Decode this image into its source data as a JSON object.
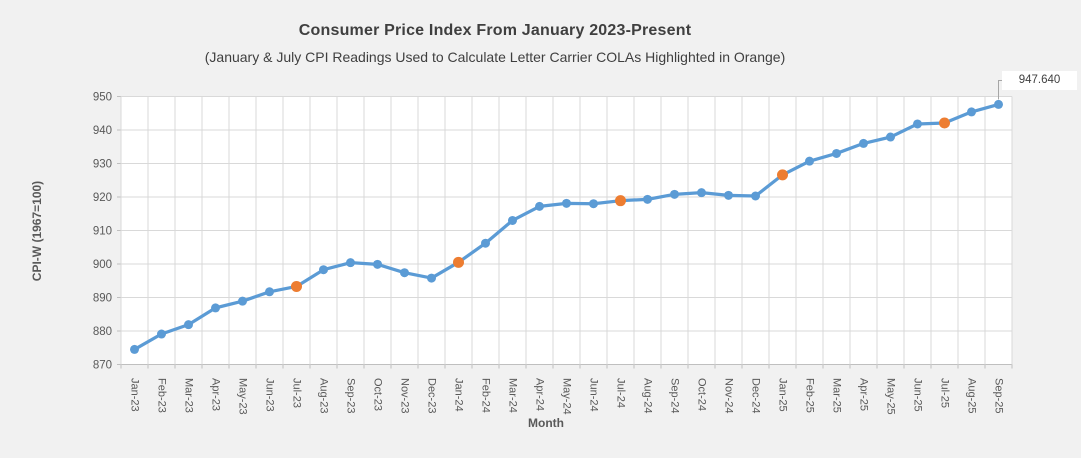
{
  "chart_data": {
    "type": "line",
    "title": "Consumer Price Index From January 2023-Present",
    "subtitle": "(January & July CPI Readings Used to Calculate Letter Carrier COLAs Highlighted in Orange)",
    "xlabel": "Month",
    "ylabel": "CPI-W (1967=100)",
    "ylim": [
      870,
      950
    ],
    "ytick_step": 10,
    "grid": true,
    "legend": false,
    "categories": [
      "Jan-23",
      "Feb-23",
      "Mar-23",
      "Apr-23",
      "May-23",
      "Jun-23",
      "Jul-23",
      "Aug-23",
      "Sep-23",
      "Oct-23",
      "Nov-23",
      "Dec-23",
      "Jan-24",
      "Feb-24",
      "Mar-24",
      "Apr-24",
      "May-24",
      "Jun-24",
      "Jul-24",
      "Aug-24",
      "Sep-24",
      "Oct-24",
      "Nov-24",
      "Dec-24",
      "Jan-25",
      "Feb-25",
      "Mar-25",
      "Apr-25",
      "May-25",
      "Jun-25",
      "Jul-25",
      "Aug-25",
      "Sep-25"
    ],
    "series": [
      {
        "name": "CPI-W (1967=100)",
        "values": [
          874.5,
          879.1,
          881.9,
          886.9,
          888.9,
          891.7,
          893.3,
          898.3,
          900.4,
          899.9,
          897.4,
          895.8,
          900.5,
          906.2,
          913.0,
          917.2,
          918.1,
          918.0,
          918.9,
          919.3,
          920.8,
          921.3,
          920.5,
          920.3,
          926.6,
          930.7,
          933.0,
          936.0,
          937.9,
          941.8,
          942.1,
          945.4,
          947.64
        ]
      }
    ],
    "highlighted_indices": [
      6,
      12,
      18,
      24,
      30
    ],
    "highlight_meaning": "January & July CPI readings used to calculate letter carrier COLAs",
    "end_annotation": {
      "index": 32,
      "text": "947.640"
    },
    "legend_position": "none",
    "colors": {
      "chart_bg": "#F1F1F1",
      "plot_bg": "#FFFFFF",
      "gridline": "#D9D9D9",
      "axis": "#BFBFBF",
      "line": "#5B9BD5",
      "highlight": "#ED7D31",
      "tick_text": "#595959",
      "title_text": "#3F3F3F",
      "leader": "#A6A6A6"
    }
  }
}
